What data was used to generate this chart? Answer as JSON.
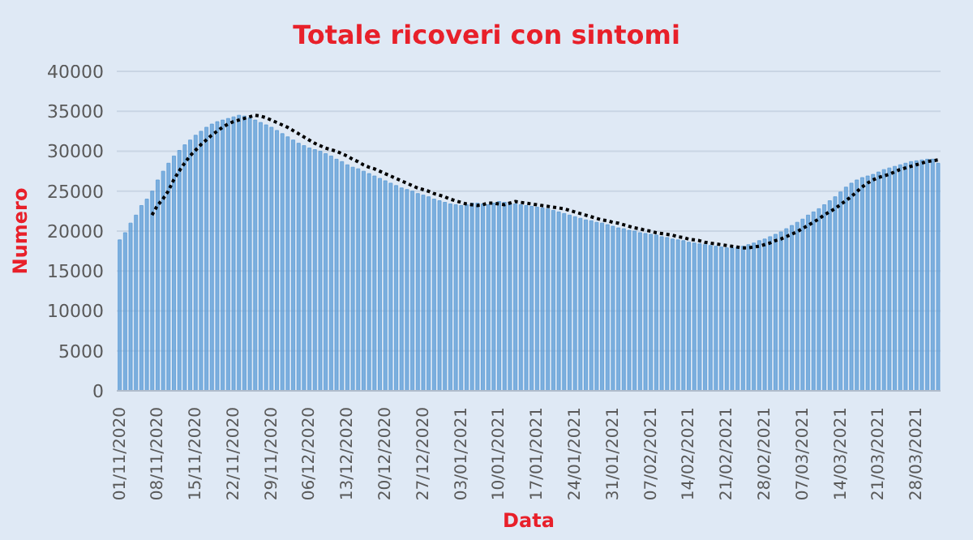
{
  "chart_data": {
    "type": "bar",
    "title": "Totale ricoveri con sintomi",
    "xlabel": "Data",
    "ylabel": "Numero",
    "categories": [
      "01/11/2020",
      null,
      null,
      null,
      null,
      null,
      null,
      "08/11/2020",
      null,
      null,
      null,
      null,
      null,
      null,
      "15/11/2020",
      null,
      null,
      null,
      null,
      null,
      null,
      "22/11/2020",
      null,
      null,
      null,
      null,
      null,
      null,
      "29/11/2020",
      null,
      null,
      null,
      null,
      null,
      null,
      "06/12/2020",
      null,
      null,
      null,
      null,
      null,
      null,
      "13/12/2020",
      null,
      null,
      null,
      null,
      null,
      null,
      "20/12/2020",
      null,
      null,
      null,
      null,
      null,
      null,
      "27/12/2020",
      null,
      null,
      null,
      null,
      null,
      null,
      "03/01/2021",
      null,
      null,
      null,
      null,
      null,
      null,
      "10/01/2021",
      null,
      null,
      null,
      null,
      null,
      null,
      "17/01/2021",
      null,
      null,
      null,
      null,
      null,
      null,
      "24/01/2021",
      null,
      null,
      null,
      null,
      null,
      null,
      "31/01/2021",
      null,
      null,
      null,
      null,
      null,
      null,
      "07/02/2021",
      null,
      null,
      null,
      null,
      null,
      null,
      "14/02/2021",
      null,
      null,
      null,
      null,
      null,
      null,
      "21/02/2021",
      null,
      null,
      null,
      null,
      null,
      null,
      "28/02/2021",
      null,
      null,
      null,
      null,
      null,
      null,
      "07/03/2021",
      null,
      null,
      null,
      null,
      null,
      null,
      "14/03/2021",
      null,
      null,
      null,
      null,
      null,
      null,
      "21/03/2021",
      null,
      null,
      null,
      null,
      null,
      null,
      "28/03/2021",
      null,
      null,
      null,
      null
    ],
    "series": [
      {
        "color": "#5b9bd5",
        "values": [
          18900,
          19800,
          21000,
          22000,
          23200,
          24000,
          25000,
          26400,
          27500,
          28500,
          29400,
          30100,
          30800,
          31400,
          32000,
          32500,
          33000,
          33400,
          33700,
          33900,
          34100,
          34300,
          34500,
          34400,
          34200,
          33900,
          33600,
          33300,
          33000,
          32600,
          32200,
          31800,
          31400,
          31000,
          30700,
          30400,
          30200,
          30000,
          29700,
          29400,
          29000,
          28700,
          28300,
          28000,
          27800,
          27500,
          27200,
          26900,
          26600,
          26300,
          26000,
          25700,
          25400,
          25200,
          25000,
          24700,
          24500,
          24300,
          24000,
          23800,
          23600,
          23400,
          23300,
          23200,
          23300,
          23500,
          23500,
          23400,
          23300,
          23500,
          23700,
          23600,
          23500,
          23400,
          23300,
          23200,
          23100,
          23000,
          22900,
          22800,
          22600,
          22400,
          22200,
          22000,
          21800,
          21600,
          21400,
          21300,
          21100,
          21000,
          20800,
          20600,
          20400,
          20300,
          20100,
          20000,
          19800,
          19700,
          19600,
          19500,
          19300,
          19200,
          19000,
          18900,
          18800,
          18600,
          18500,
          18400,
          18300,
          18200,
          18100,
          18000,
          17900,
          17900,
          18000,
          18100,
          18300,
          18500,
          18800,
          19000,
          19300,
          19600,
          19900,
          20300,
          20700,
          21100,
          21500,
          22000,
          22400,
          22800,
          23300,
          23800,
          24300,
          24900,
          25500,
          26000,
          26400,
          26700,
          26900,
          27100,
          27400,
          27700,
          27900,
          28100,
          28300,
          28500,
          28700,
          28800,
          28900,
          29000,
          29000,
          28500
        ]
      },
      {
        "type": "line",
        "color": "#000000",
        "line_style": "dotted",
        "marker": "none",
        "values": [
          null,
          null,
          null,
          null,
          null,
          null,
          22000,
          23200,
          24000,
          25000,
          26400,
          27500,
          28500,
          29400,
          30100,
          30800,
          31400,
          32000,
          32500,
          33000,
          33400,
          33700,
          33900,
          34100,
          34300,
          34500,
          34400,
          34200,
          33900,
          33600,
          33300,
          33000,
          32600,
          32200,
          31800,
          31400,
          31000,
          30700,
          30400,
          30200,
          30000,
          29700,
          29400,
          29000,
          28700,
          28300,
          28000,
          27800,
          27500,
          27200,
          26900,
          26600,
          26300,
          26000,
          25700,
          25400,
          25200,
          25000,
          24700,
          24500,
          24300,
          24000,
          23800,
          23600,
          23400,
          23300,
          23200,
          23300,
          23500,
          23500,
          23400,
          23300,
          23500,
          23700,
          23600,
          23500,
          23400,
          23300,
          23200,
          23100,
          23000,
          22900,
          22800,
          22600,
          22400,
          22200,
          22000,
          21800,
          21600,
          21400,
          21300,
          21100,
          21000,
          20800,
          20600,
          20400,
          20300,
          20100,
          20000,
          19800,
          19700,
          19600,
          19500,
          19300,
          19200,
          19000,
          18900,
          18800,
          18600,
          18500,
          18400,
          18300,
          18200,
          18100,
          18000,
          17900,
          17900,
          18000,
          18100,
          18300,
          18500,
          18800,
          19000,
          19300,
          19600,
          19900,
          20300,
          20700,
          21100,
          21500,
          22000,
          22400,
          22800,
          23300,
          23800,
          24300,
          24900,
          25500,
          26000,
          26400,
          26700,
          26900,
          27100,
          27400,
          27700,
          27900,
          28100,
          28300,
          28500,
          28700,
          28800,
          28900
        ]
      }
    ],
    "ylim": [
      0,
      40000
    ],
    "yticks": [
      0,
      5000,
      10000,
      15000,
      20000,
      25000,
      30000,
      35000,
      40000
    ],
    "grid": "y"
  }
}
